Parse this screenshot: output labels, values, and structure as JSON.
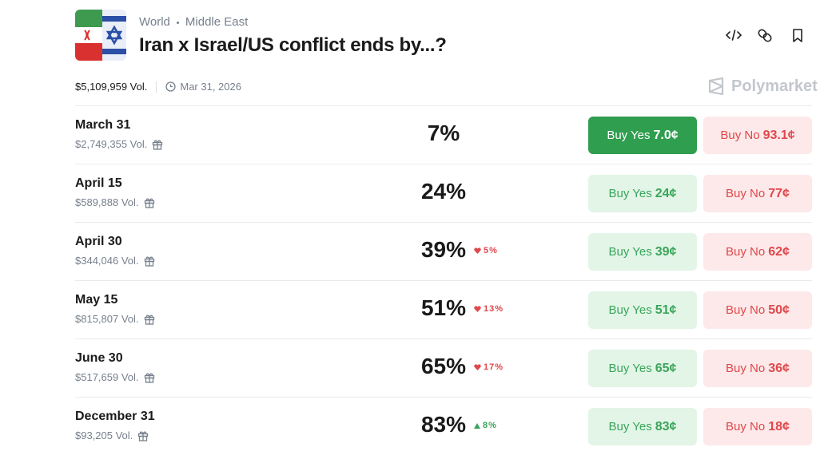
{
  "header": {
    "breadcrumb": [
      "World",
      "Middle East"
    ],
    "title": "Iran x Israel/US conflict ends by...?",
    "volume": "$5,109,959 Vol.",
    "end_date": "Mar 31, 2026",
    "brand": "Polymarket"
  },
  "markets": [
    {
      "name": "March 31",
      "volume": "$2,749,355 Vol.",
      "percent": "7%",
      "buy_yes": {
        "label": "Buy Yes",
        "price": "7.0¢"
      },
      "buy_no": {
        "label": "Buy No",
        "price": "93.1¢"
      },
      "highlight": true
    },
    {
      "name": "April 15",
      "volume": "$589,888 Vol.",
      "percent": "24%",
      "buy_yes": {
        "label": "Buy Yes",
        "price": "24¢"
      },
      "buy_no": {
        "label": "Buy No",
        "price": "77¢"
      }
    },
    {
      "name": "April 30",
      "volume": "$344,046 Vol.",
      "percent": "39%",
      "change": {
        "text": "5%",
        "direction": "down"
      },
      "buy_yes": {
        "label": "Buy Yes",
        "price": "39¢"
      },
      "buy_no": {
        "label": "Buy No",
        "price": "62¢"
      }
    },
    {
      "name": "May 15",
      "volume": "$815,807 Vol.",
      "percent": "51%",
      "change": {
        "text": "13%",
        "direction": "down"
      },
      "buy_yes": {
        "label": "Buy Yes",
        "price": "51¢"
      },
      "buy_no": {
        "label": "Buy No",
        "price": "50¢"
      }
    },
    {
      "name": "June 30",
      "volume": "$517,659 Vol.",
      "percent": "65%",
      "change": {
        "text": "17%",
        "direction": "down"
      },
      "buy_yes": {
        "label": "Buy Yes",
        "price": "65¢"
      },
      "buy_no": {
        "label": "Buy No",
        "price": "36¢"
      }
    },
    {
      "name": "December 31",
      "volume": "$93,205 Vol.",
      "percent": "83%",
      "change": {
        "text": "8%",
        "direction": "up"
      },
      "buy_yes": {
        "label": "Buy Yes",
        "price": "83¢"
      },
      "buy_no": {
        "label": "Buy No",
        "price": "18¢"
      }
    }
  ]
}
